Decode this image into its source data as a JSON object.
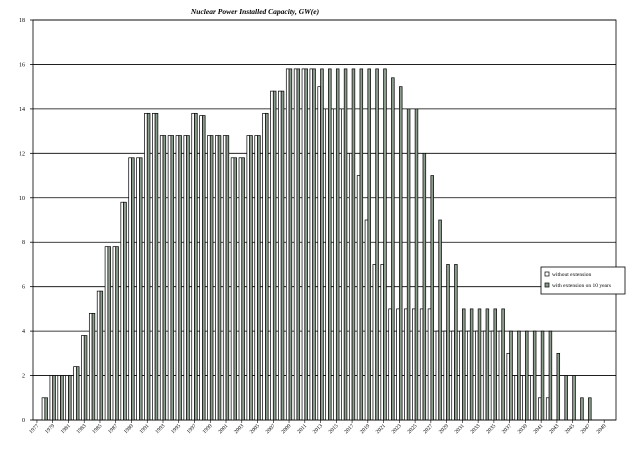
{
  "chart_data": {
    "type": "bar",
    "title": "Nuclear Power Installed Capacity,  GW(e)",
    "ylim": [
      0,
      18
    ],
    "yticks": [
      0,
      2,
      4,
      6,
      8,
      10,
      12,
      14,
      16,
      18
    ],
    "grid": true,
    "legend_position": "right",
    "categories": [
      "1977",
      "1978",
      "1979",
      "1980",
      "1981",
      "1982",
      "1983",
      "1984",
      "1985",
      "1986",
      "1987",
      "1988",
      "1989",
      "1990",
      "1991",
      "1992",
      "1993",
      "1994",
      "1995",
      "1996",
      "1997",
      "1998",
      "1999",
      "2000",
      "2001",
      "2002",
      "2003",
      "2004",
      "2005",
      "2006",
      "2007",
      "2008",
      "2009",
      "2010",
      "2011",
      "2012",
      "2013",
      "2014",
      "2015",
      "2016",
      "2017",
      "2018",
      "2019",
      "2020",
      "2021",
      "2022",
      "2023",
      "2024",
      "2025",
      "2026",
      "2027",
      "2028",
      "2029",
      "2030",
      "2031",
      "2032",
      "2033",
      "2034",
      "2035",
      "2036",
      "2037",
      "2038",
      "2039",
      "2040",
      "2041",
      "2042",
      "2043",
      "2044",
      "2045",
      "2046",
      "2047",
      "2048",
      "2049",
      "2050"
    ],
    "x_tick_labels": [
      "1977",
      "1979",
      "1981",
      "1983",
      "1985",
      "1987",
      "1989",
      "1991",
      "1993",
      "1995",
      "1997",
      "1999",
      "2001",
      "2003",
      "2005",
      "2007",
      "2009",
      "2011",
      "2013",
      "2015",
      "2017",
      "2019",
      "2021",
      "2023",
      "2025",
      "2027",
      "2029",
      "2031",
      "2033",
      "2035",
      "2037",
      "2039",
      "2041",
      "2043",
      "2045",
      "2047",
      "2049"
    ],
    "series": [
      {
        "name": "without extension",
        "values": [
          0,
          1,
          2,
          2,
          2,
          2.4,
          3.8,
          4.8,
          5.8,
          7.8,
          7.8,
          9.8,
          11.8,
          11.8,
          13.8,
          13.8,
          12.8,
          12.8,
          12.8,
          12.8,
          13.8,
          13.7,
          12.8,
          12.8,
          12.8,
          11.8,
          11.8,
          12.8,
          12.8,
          13.8,
          14.8,
          14.8,
          15.8,
          15.8,
          15.8,
          15.8,
          15,
          14,
          14,
          14,
          12,
          11,
          9,
          7,
          7,
          5,
          5,
          5,
          5,
          5,
          5,
          4,
          4,
          4,
          4,
          4,
          4,
          4,
          4,
          4,
          3,
          2,
          2,
          2,
          1,
          1,
          0,
          0,
          0,
          0,
          0,
          0,
          0,
          0
        ]
      },
      {
        "name": "with extension on 10 years",
        "values": [
          0,
          1,
          2,
          2,
          2,
          2.4,
          3.8,
          4.8,
          5.8,
          7.8,
          7.8,
          9.8,
          11.8,
          11.8,
          13.8,
          13.8,
          12.8,
          12.8,
          12.8,
          12.8,
          13.8,
          13.7,
          12.8,
          12.8,
          12.8,
          11.8,
          11.8,
          12.8,
          12.8,
          13.8,
          14.8,
          14.8,
          15.8,
          15.8,
          15.8,
          15.8,
          15.8,
          15.8,
          15.8,
          15.8,
          15.8,
          15.8,
          15.8,
          15.8,
          15.8,
          15.4,
          15,
          14,
          14,
          12,
          11,
          9,
          7,
          7,
          5,
          5,
          5,
          5,
          5,
          5,
          4,
          4,
          4,
          4,
          4,
          4,
          3,
          2,
          2,
          1,
          1,
          0,
          0,
          0
        ]
      }
    ]
  }
}
